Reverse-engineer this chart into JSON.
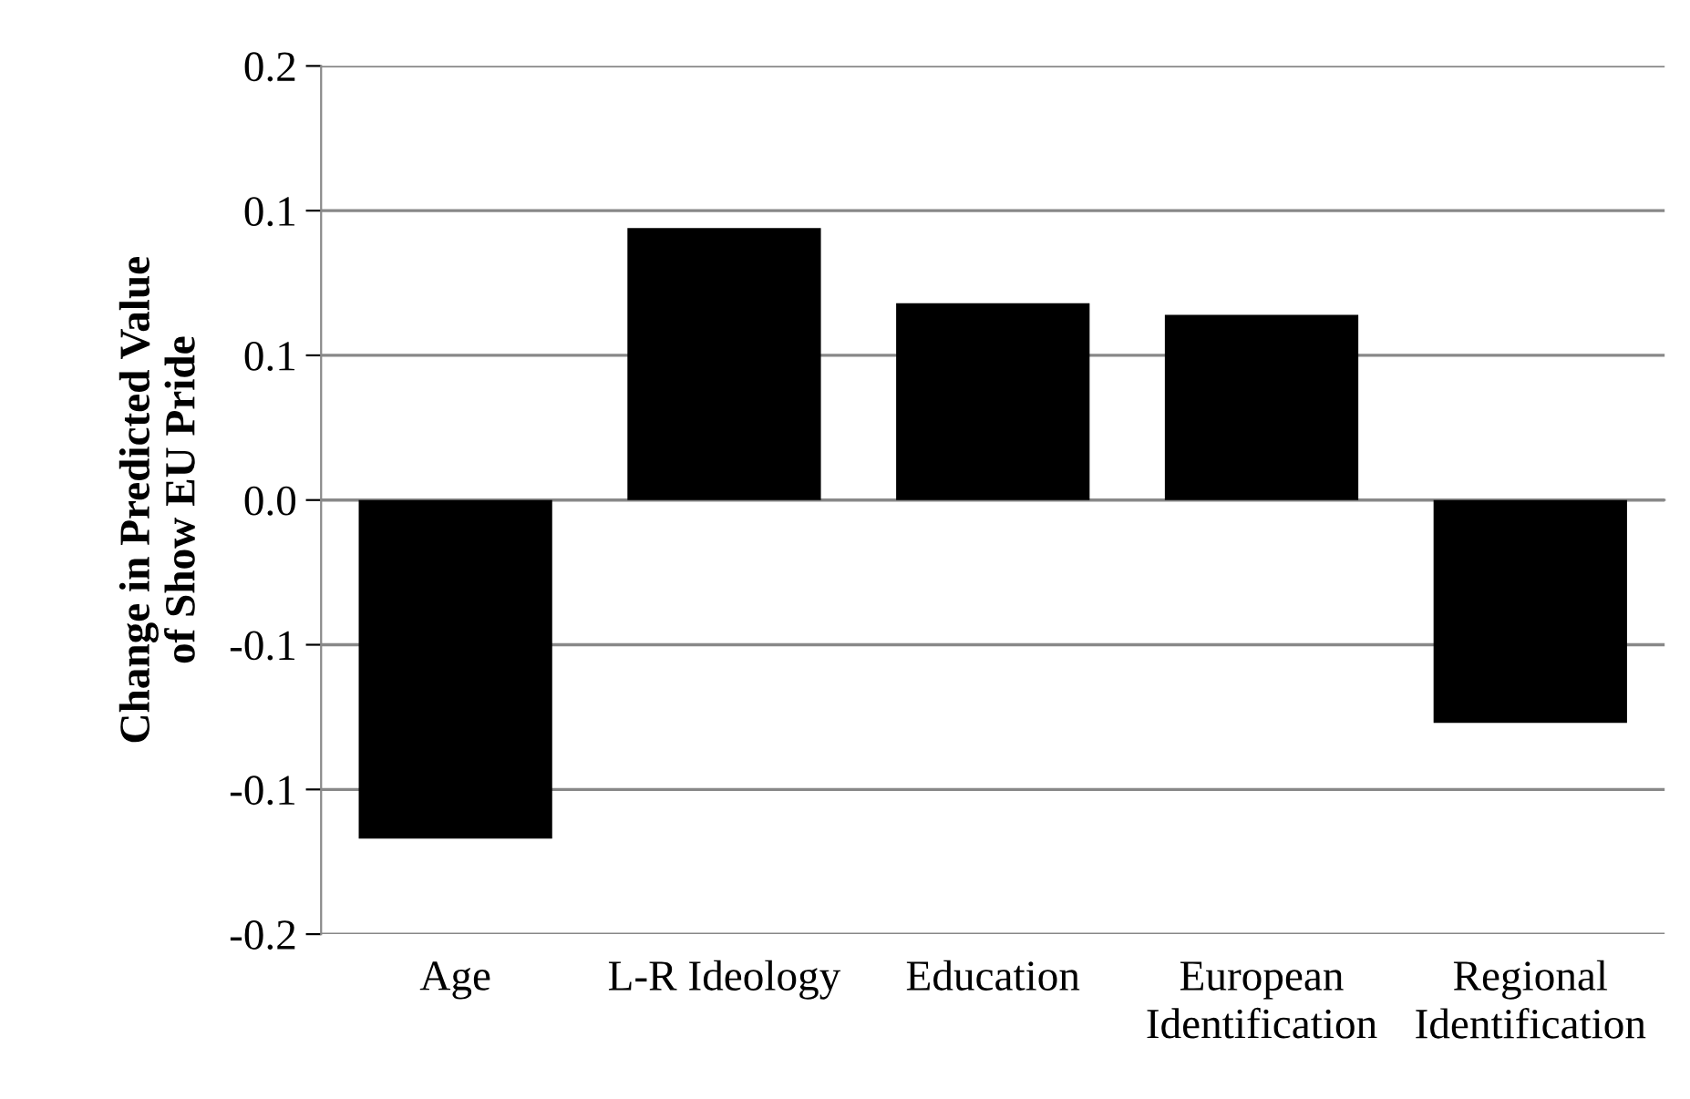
{
  "chart_data": {
    "type": "bar",
    "ylabel": "Change in Predicted Value\nof Show EU Pride",
    "categories": [
      "Age",
      "L-R Ideology",
      "Education",
      "European\nIdentification",
      "Regional\nIdentification"
    ],
    "values": [
      -0.117,
      0.094,
      0.068,
      0.064,
      -0.077
    ],
    "color": "#000000",
    "ylim": [
      -0.15,
      0.15
    ],
    "yticks": [
      {
        "value": -0.15,
        "label": "-0.2"
      },
      {
        "value": -0.1,
        "label": "-0.1"
      },
      {
        "value": -0.05,
        "label": "-0.1"
      },
      {
        "value": 0,
        "label": "0.0"
      },
      {
        "value": 0.05,
        "label": "0.1"
      },
      {
        "value": 0.1,
        "label": "0.1"
      },
      {
        "value": 0.15,
        "label": "0.2"
      }
    ],
    "grid": "y",
    "legend": false
  }
}
